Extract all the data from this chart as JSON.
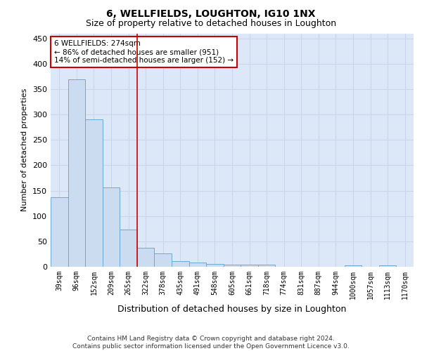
{
  "title": "6, WELLFIELDS, LOUGHTON, IG10 1NX",
  "subtitle": "Size of property relative to detached houses in Loughton",
  "xlabel": "Distribution of detached houses by size in Loughton",
  "ylabel": "Number of detached properties",
  "categories": [
    "39sqm",
    "96sqm",
    "152sqm",
    "209sqm",
    "265sqm",
    "322sqm",
    "378sqm",
    "435sqm",
    "491sqm",
    "548sqm",
    "605sqm",
    "661sqm",
    "718sqm",
    "774sqm",
    "831sqm",
    "887sqm",
    "944sqm",
    "1000sqm",
    "1057sqm",
    "1113sqm",
    "1170sqm"
  ],
  "values": [
    137,
    370,
    290,
    156,
    74,
    38,
    26,
    11,
    8,
    6,
    4,
    4,
    4,
    0,
    0,
    0,
    0,
    3,
    0,
    3,
    0
  ],
  "bar_color": "#ccdcf0",
  "bar_edge_color": "#6aaad4",
  "bar_edge_width": 0.7,
  "annotation_box_text": "6 WELLFIELDS: 274sqm\n← 86% of detached houses are smaller (951)\n14% of semi-detached houses are larger (152) →",
  "annotation_box_color": "#ffffff",
  "annotation_box_edge_color": "#cc0000",
  "vline_x": 4.5,
  "vline_color": "#cc0000",
  "vline_linewidth": 1.2,
  "ylim": [
    0,
    460
  ],
  "yticks": [
    0,
    50,
    100,
    150,
    200,
    250,
    300,
    350,
    400,
    450
  ],
  "grid_color": "#c8d4e8",
  "plot_bg_color": "#dce8f8",
  "title_fontsize": 10,
  "subtitle_fontsize": 9,
  "axis_label_fontsize": 8,
  "tick_fontsize": 7,
  "footer_text": "Contains HM Land Registry data © Crown copyright and database right 2024.\nContains public sector information licensed under the Open Government Licence v3.0.",
  "footer_fontsize": 6.5
}
